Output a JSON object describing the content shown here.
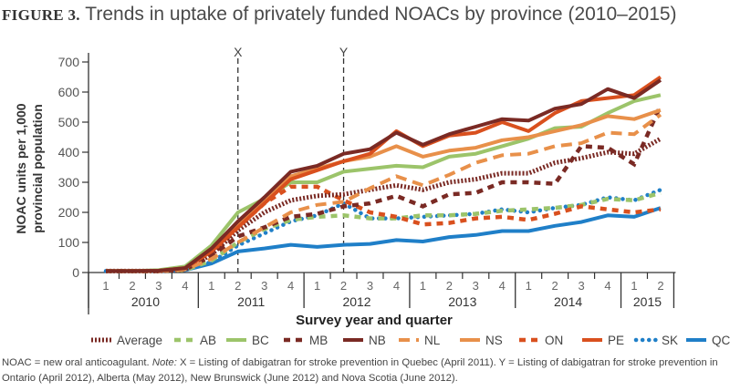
{
  "figure": {
    "label": "FIGURE 3.",
    "title": "Trends in uptake of privately funded NOACs by province (2010–2015)"
  },
  "note": {
    "prefix": "NOAC = new oral anticoagulant. ",
    "note_label": "Note:",
    "body": " X = Listing of dabigatran for stroke prevention in Quebec (April 2011). Y = Listing of dabigatran for stroke prevention in Ontario (April 2012), Alberta (May 2012), New Brunswick (June 2012) and Nova Scotia (June 2012)."
  },
  "chart_data": {
    "type": "line",
    "title": "Trends in uptake of privately funded NOACs by province (2010–2015)",
    "xlabel": "Survey year and quarter",
    "ylabel": "NOAC units per 1,000 provincial population",
    "ylim": [
      0,
      700
    ],
    "yticks": [
      0,
      100,
      200,
      300,
      400,
      500,
      600,
      700
    ],
    "ytick_labels": [
      "0",
      "100",
      "200",
      "300",
      "400",
      "500",
      "600",
      "700"
    ],
    "grid": false,
    "legend_position": "bottom",
    "x": [
      "2010 Q1",
      "2010 Q2",
      "2010 Q3",
      "2010 Q4",
      "2011 Q1",
      "2011 Q2",
      "2011 Q3",
      "2011 Q4",
      "2012 Q1",
      "2012 Q2",
      "2012 Q3",
      "2012 Q4",
      "2013 Q1",
      "2013 Q2",
      "2013 Q3",
      "2013 Q4",
      "2014 Q1",
      "2014 Q2",
      "2014 Q3",
      "2014 Q4",
      "2015 Q1",
      "2015 Q2"
    ],
    "quarter_labels": [
      "1",
      "2",
      "3",
      "4",
      "1",
      "2",
      "3",
      "4",
      "1",
      "2",
      "3",
      "4",
      "1",
      "2",
      "3",
      "4",
      "1",
      "2",
      "3",
      "4",
      "1",
      "2"
    ],
    "years": [
      {
        "label": "2010",
        "quarters": 4
      },
      {
        "label": "2011",
        "quarters": 4
      },
      {
        "label": "2012",
        "quarters": 4
      },
      {
        "label": "2013",
        "quarters": 4
      },
      {
        "label": "2014",
        "quarters": 4
      },
      {
        "label": "2015",
        "quarters": 2
      }
    ],
    "annotations": [
      {
        "label": "X",
        "x_index": 5
      },
      {
        "label": "Y",
        "x_index": 9
      }
    ],
    "series": [
      {
        "name": "Average",
        "color": "#7a2a24",
        "style": "dotted-heavy",
        "values": [
          5,
          5,
          5,
          10,
          60,
          140,
          200,
          240,
          255,
          260,
          275,
          290,
          275,
          300,
          310,
          330,
          330,
          365,
          380,
          400,
          395,
          445
        ]
      },
      {
        "name": "AB",
        "color": "#9cc46a",
        "style": "dashed-square",
        "values": [
          5,
          5,
          5,
          8,
          40,
          100,
          145,
          175,
          185,
          190,
          180,
          180,
          190,
          190,
          195,
          205,
          210,
          215,
          225,
          245,
          240,
          265
        ]
      },
      {
        "name": "BC",
        "color": "#9cc46a",
        "style": "solid",
        "values": [
          5,
          5,
          8,
          20,
          90,
          200,
          245,
          300,
          300,
          335,
          345,
          355,
          350,
          385,
          395,
          420,
          445,
          480,
          485,
          530,
          570,
          590
        ]
      },
      {
        "name": "MB",
        "color": "#7a2a24",
        "style": "dashed-square",
        "values": [
          5,
          5,
          5,
          10,
          55,
          120,
          150,
          185,
          195,
          220,
          230,
          255,
          220,
          260,
          265,
          300,
          300,
          295,
          420,
          415,
          360,
          555
        ]
      },
      {
        "name": "NB",
        "color": "#7a2a24",
        "style": "solid",
        "values": [
          5,
          5,
          6,
          15,
          80,
          170,
          250,
          335,
          355,
          395,
          410,
          465,
          425,
          460,
          485,
          510,
          505,
          545,
          560,
          610,
          580,
          640
        ]
      },
      {
        "name": "NL",
        "color": "#e8904a",
        "style": "dashed",
        "values": [
          5,
          5,
          5,
          10,
          45,
          100,
          150,
          200,
          225,
          235,
          280,
          320,
          290,
          325,
          365,
          390,
          395,
          420,
          430,
          465,
          460,
          525
        ]
      },
      {
        "name": "NS",
        "color": "#e8904a",
        "style": "solid",
        "values": [
          5,
          5,
          6,
          15,
          75,
          160,
          240,
          320,
          345,
          370,
          385,
          420,
          385,
          405,
          415,
          440,
          450,
          470,
          490,
          520,
          510,
          540
        ]
      },
      {
        "name": "ON",
        "color": "#d9501e",
        "style": "dashed-square",
        "values": [
          5,
          5,
          5,
          10,
          60,
          150,
          230,
          285,
          285,
          240,
          200,
          185,
          160,
          165,
          180,
          185,
          175,
          195,
          220,
          210,
          200,
          210
        ]
      },
      {
        "name": "PE",
        "color": "#d9501e",
        "style": "solid",
        "values": [
          5,
          5,
          6,
          15,
          70,
          150,
          230,
          310,
          340,
          370,
          395,
          470,
          420,
          455,
          465,
          500,
          470,
          530,
          570,
          580,
          590,
          650
        ]
      },
      {
        "name": "SK",
        "color": "#1f7fc8",
        "style": "dotted-round",
        "values": [
          5,
          5,
          5,
          8,
          35,
          90,
          130,
          170,
          190,
          230,
          180,
          180,
          185,
          190,
          195,
          210,
          200,
          215,
          225,
          250,
          240,
          275
        ]
      },
      {
        "name": "QC",
        "color": "#1f7fc8",
        "style": "solid",
        "values": [
          5,
          5,
          5,
          8,
          30,
          70,
          80,
          92,
          85,
          92,
          95,
          108,
          103,
          118,
          125,
          138,
          138,
          155,
          168,
          190,
          185,
          215
        ]
      }
    ]
  }
}
